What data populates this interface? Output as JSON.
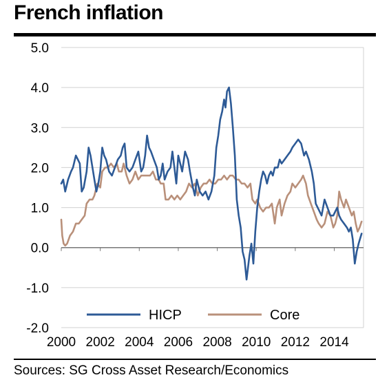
{
  "header": {
    "title": "French inflation"
  },
  "footer": {
    "source": "Sources: SG Cross Asset Research/Economics"
  },
  "chart_data": {
    "type": "line",
    "title": "French inflation",
    "xlabel": "",
    "ylabel": "",
    "xlim": [
      2000,
      2015.5
    ],
    "ylim": [
      -2.0,
      5.0
    ],
    "x_ticks": [
      2000,
      2002,
      2004,
      2006,
      2008,
      2010,
      2012,
      2014
    ],
    "y_ticks": [
      "5.0",
      "4.0",
      "3.0",
      "2.0",
      "1.0",
      "0.0",
      "-1.0",
      "-2.0"
    ],
    "y_tick_values": [
      5.0,
      4.0,
      3.0,
      2.0,
      1.0,
      0.0,
      -1.0,
      -2.0
    ],
    "grid": true,
    "legend_position": "bottom",
    "series": [
      {
        "name": "HICP",
        "color": "#2d5a96",
        "points": [
          [
            2000.0,
            1.6
          ],
          [
            2000.1,
            1.7
          ],
          [
            2000.2,
            1.4
          ],
          [
            2000.35,
            1.7
          ],
          [
            2000.5,
            1.9
          ],
          [
            2000.6,
            2.0
          ],
          [
            2000.75,
            2.3
          ],
          [
            2000.85,
            2.2
          ],
          [
            2000.95,
            2.1
          ],
          [
            2001.05,
            1.4
          ],
          [
            2001.15,
            1.5
          ],
          [
            2001.3,
            1.9
          ],
          [
            2001.4,
            2.5
          ],
          [
            2001.5,
            2.3
          ],
          [
            2001.6,
            2.0
          ],
          [
            2001.7,
            1.7
          ],
          [
            2001.8,
            1.4
          ],
          [
            2001.9,
            1.6
          ],
          [
            2002.0,
            1.9
          ],
          [
            2002.1,
            2.5
          ],
          [
            2002.2,
            2.3
          ],
          [
            2002.3,
            2.2
          ],
          [
            2002.45,
            1.9
          ],
          [
            2002.6,
            1.8
          ],
          [
            2002.75,
            2.0
          ],
          [
            2002.9,
            2.2
          ],
          [
            2003.05,
            2.3
          ],
          [
            2003.15,
            2.5
          ],
          [
            2003.25,
            2.6
          ],
          [
            2003.35,
            2.0
          ],
          [
            2003.5,
            1.9
          ],
          [
            2003.65,
            2.0
          ],
          [
            2003.8,
            2.2
          ],
          [
            2003.95,
            2.4
          ],
          [
            2004.1,
            1.9
          ],
          [
            2004.2,
            2.0
          ],
          [
            2004.3,
            2.3
          ],
          [
            2004.4,
            2.8
          ],
          [
            2004.5,
            2.5
          ],
          [
            2004.6,
            2.4
          ],
          [
            2004.75,
            2.2
          ],
          [
            2004.9,
            2.0
          ],
          [
            2005.0,
            1.7
          ],
          [
            2005.1,
            1.8
          ],
          [
            2005.2,
            2.1
          ],
          [
            2005.3,
            1.7
          ],
          [
            2005.45,
            1.9
          ],
          [
            2005.6,
            2.0
          ],
          [
            2005.7,
            2.4
          ],
          [
            2005.8,
            2.0
          ],
          [
            2005.9,
            1.6
          ],
          [
            2006.0,
            2.3
          ],
          [
            2006.1,
            2.1
          ],
          [
            2006.2,
            1.9
          ],
          [
            2006.35,
            2.4
          ],
          [
            2006.5,
            2.2
          ],
          [
            2006.6,
            1.9
          ],
          [
            2006.75,
            1.5
          ],
          [
            2006.85,
            1.3
          ],
          [
            2006.95,
            1.7
          ],
          [
            2007.1,
            1.4
          ],
          [
            2007.25,
            1.3
          ],
          [
            2007.4,
            1.4
          ],
          [
            2007.55,
            1.2
          ],
          [
            2007.7,
            1.4
          ],
          [
            2007.85,
            1.8
          ],
          [
            2007.95,
            2.5
          ],
          [
            2008.05,
            2.8
          ],
          [
            2008.15,
            3.2
          ],
          [
            2008.25,
            3.4
          ],
          [
            2008.35,
            3.7
          ],
          [
            2008.42,
            3.5
          ],
          [
            2008.5,
            3.9
          ],
          [
            2008.6,
            4.0
          ],
          [
            2008.7,
            3.6
          ],
          [
            2008.8,
            3.0
          ],
          [
            2008.9,
            2.3
          ],
          [
            2009.0,
            1.2
          ],
          [
            2009.1,
            0.8
          ],
          [
            2009.2,
            0.5
          ],
          [
            2009.3,
            -0.1
          ],
          [
            2009.4,
            -0.3
          ],
          [
            2009.5,
            -0.8
          ],
          [
            2009.55,
            -0.6
          ],
          [
            2009.65,
            -0.2
          ],
          [
            2009.75,
            0.1
          ],
          [
            2009.85,
            -0.4
          ],
          [
            2009.95,
            0.4
          ],
          [
            2010.05,
            1.0
          ],
          [
            2010.15,
            1.4
          ],
          [
            2010.25,
            1.7
          ],
          [
            2010.35,
            1.9
          ],
          [
            2010.45,
            1.8
          ],
          [
            2010.55,
            1.6
          ],
          [
            2010.65,
            1.8
          ],
          [
            2010.75,
            1.9
          ],
          [
            2010.85,
            1.8
          ],
          [
            2010.95,
            2.0
          ],
          [
            2011.1,
            2.0
          ],
          [
            2011.2,
            2.2
          ],
          [
            2011.3,
            2.1
          ],
          [
            2011.45,
            2.2
          ],
          [
            2011.6,
            2.3
          ],
          [
            2011.75,
            2.4
          ],
          [
            2011.85,
            2.5
          ],
          [
            2012.0,
            2.6
          ],
          [
            2012.15,
            2.7
          ],
          [
            2012.3,
            2.6
          ],
          [
            2012.45,
            2.3
          ],
          [
            2012.55,
            2.4
          ],
          [
            2012.7,
            2.2
          ],
          [
            2012.85,
            1.9
          ],
          [
            2012.95,
            1.6
          ],
          [
            2013.05,
            1.1
          ],
          [
            2013.15,
            1.0
          ],
          [
            2013.25,
            0.9
          ],
          [
            2013.35,
            0.8
          ],
          [
            2013.5,
            1.2
          ],
          [
            2013.65,
            1.0
          ],
          [
            2013.8,
            0.8
          ],
          [
            2013.95,
            0.8
          ],
          [
            2014.05,
            0.9
          ],
          [
            2014.15,
            1.0
          ],
          [
            2014.25,
            0.8
          ],
          [
            2014.35,
            0.7
          ],
          [
            2014.5,
            0.6
          ],
          [
            2014.65,
            0.5
          ],
          [
            2014.75,
            0.4
          ],
          [
            2014.85,
            0.5
          ],
          [
            2014.95,
            0.2
          ],
          [
            2015.05,
            -0.4
          ],
          [
            2015.15,
            -0.1
          ],
          [
            2015.25,
            0.1
          ],
          [
            2015.4,
            0.35
          ]
        ]
      },
      {
        "name": "Core",
        "color": "#b9907a",
        "points": [
          [
            2000.0,
            0.7
          ],
          [
            2000.05,
            0.3
          ],
          [
            2000.12,
            0.1
          ],
          [
            2000.2,
            0.05
          ],
          [
            2000.3,
            0.1
          ],
          [
            2000.45,
            0.3
          ],
          [
            2000.6,
            0.4
          ],
          [
            2000.75,
            0.6
          ],
          [
            2000.9,
            0.6
          ],
          [
            2001.05,
            0.7
          ],
          [
            2001.2,
            0.8
          ],
          [
            2001.3,
            1.1
          ],
          [
            2001.45,
            1.2
          ],
          [
            2001.6,
            1.2
          ],
          [
            2001.7,
            1.3
          ],
          [
            2001.85,
            1.6
          ],
          [
            2002.0,
            1.5
          ],
          [
            2002.1,
            1.9
          ],
          [
            2002.25,
            2.0
          ],
          [
            2002.4,
            2.0
          ],
          [
            2002.55,
            2.1
          ],
          [
            2002.7,
            2.0
          ],
          [
            2002.85,
            2.1
          ],
          [
            2002.95,
            1.9
          ],
          [
            2003.1,
            1.9
          ],
          [
            2003.2,
            2.1
          ],
          [
            2003.35,
            1.8
          ],
          [
            2003.5,
            1.6
          ],
          [
            2003.65,
            1.7
          ],
          [
            2003.8,
            1.9
          ],
          [
            2003.95,
            1.7
          ],
          [
            2004.1,
            1.8
          ],
          [
            2004.25,
            1.8
          ],
          [
            2004.4,
            1.8
          ],
          [
            2004.55,
            1.8
          ],
          [
            2004.7,
            1.9
          ],
          [
            2004.85,
            1.7
          ],
          [
            2005.0,
            1.7
          ],
          [
            2005.1,
            1.6
          ],
          [
            2005.25,
            1.6
          ],
          [
            2005.35,
            1.2
          ],
          [
            2005.5,
            1.2
          ],
          [
            2005.65,
            1.3
          ],
          [
            2005.8,
            1.2
          ],
          [
            2005.95,
            1.3
          ],
          [
            2006.1,
            1.2
          ],
          [
            2006.25,
            1.3
          ],
          [
            2006.4,
            1.4
          ],
          [
            2006.55,
            1.6
          ],
          [
            2006.7,
            1.5
          ],
          [
            2006.85,
            1.6
          ],
          [
            2007.0,
            1.3
          ],
          [
            2007.15,
            1.5
          ],
          [
            2007.3,
            1.6
          ],
          [
            2007.45,
            1.6
          ],
          [
            2007.6,
            1.7
          ],
          [
            2007.75,
            1.6
          ],
          [
            2007.9,
            1.6
          ],
          [
            2008.05,
            1.7
          ],
          [
            2008.2,
            1.7
          ],
          [
            2008.35,
            1.8
          ],
          [
            2008.5,
            1.7
          ],
          [
            2008.65,
            1.8
          ],
          [
            2008.8,
            1.8
          ],
          [
            2008.95,
            1.7
          ],
          [
            2009.1,
            1.7
          ],
          [
            2009.25,
            1.6
          ],
          [
            2009.4,
            1.6
          ],
          [
            2009.55,
            1.5
          ],
          [
            2009.7,
            1.6
          ],
          [
            2009.8,
            1.2
          ],
          [
            2009.95,
            1.1
          ],
          [
            2010.05,
            1.2
          ],
          [
            2010.2,
            1.0
          ],
          [
            2010.35,
            0.9
          ],
          [
            2010.5,
            1.0
          ],
          [
            2010.65,
            1.0
          ],
          [
            2010.8,
            1.1
          ],
          [
            2010.95,
            0.6
          ],
          [
            2011.05,
            1.0
          ],
          [
            2011.2,
            1.2
          ],
          [
            2011.3,
            0.8
          ],
          [
            2011.45,
            1.1
          ],
          [
            2011.6,
            1.3
          ],
          [
            2011.75,
            1.4
          ],
          [
            2011.85,
            1.6
          ],
          [
            2012.0,
            1.5
          ],
          [
            2012.15,
            1.6
          ],
          [
            2012.3,
            1.7
          ],
          [
            2012.4,
            1.8
          ],
          [
            2012.55,
            1.6
          ],
          [
            2012.65,
            1.3
          ],
          [
            2012.8,
            1.1
          ],
          [
            2012.95,
            0.9
          ],
          [
            2013.1,
            0.7
          ],
          [
            2013.2,
            0.6
          ],
          [
            2013.35,
            0.5
          ],
          [
            2013.5,
            0.6
          ],
          [
            2013.65,
            0.9
          ],
          [
            2013.8,
            0.8
          ],
          [
            2013.95,
            0.5
          ],
          [
            2014.05,
            0.6
          ],
          [
            2014.15,
            0.8
          ],
          [
            2014.25,
            1.4
          ],
          [
            2014.35,
            1.2
          ],
          [
            2014.5,
            1.0
          ],
          [
            2014.6,
            1.2
          ],
          [
            2014.75,
            1.0
          ],
          [
            2014.9,
            0.8
          ],
          [
            2015.0,
            0.9
          ],
          [
            2015.1,
            0.6
          ],
          [
            2015.2,
            0.4
          ],
          [
            2015.3,
            0.5
          ],
          [
            2015.4,
            0.65
          ]
        ]
      }
    ]
  }
}
